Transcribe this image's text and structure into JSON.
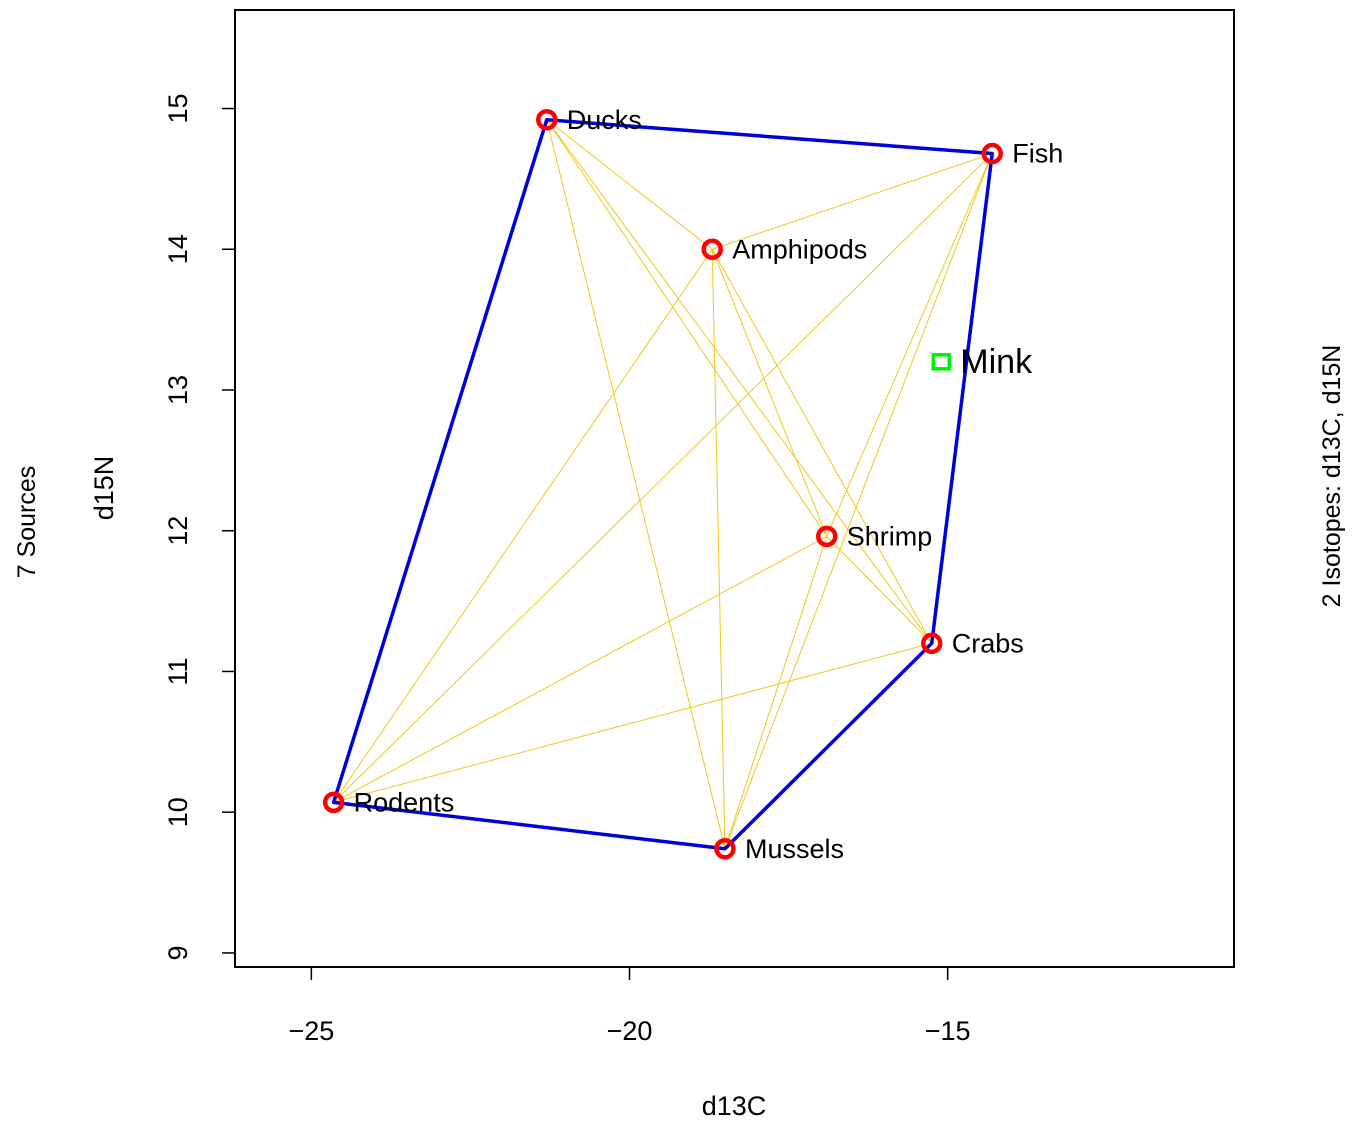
{
  "chart_data": {
    "type": "scatter",
    "xlabel": "d13C",
    "ylabel": "d15N",
    "left_label": "7  Sources",
    "right_label": "2 Isotopes:  d13C, d15N",
    "xlim": [
      -26.2,
      -10.5
    ],
    "ylim": [
      8.9,
      15.7
    ],
    "xticks": [
      -25,
      -20,
      -15
    ],
    "xtick_labels": [
      "−25",
      "−20",
      "−15"
    ],
    "yticks": [
      9,
      10,
      11,
      12,
      13,
      14,
      15
    ],
    "ytick_labels": [
      "9",
      "10",
      "11",
      "12",
      "13",
      "14",
      "15"
    ],
    "grid": false,
    "legend": "none",
    "colors": {
      "source_point": "#ff0000",
      "hull": "#0000dd",
      "mixing_lines": "#f0c81e",
      "mixture": "#00ee00"
    },
    "sources": [
      {
        "name": "Ducks",
        "x": -21.3,
        "y": 14.92
      },
      {
        "name": "Fish",
        "x": -14.3,
        "y": 14.68
      },
      {
        "name": "Amphipods",
        "x": -18.7,
        "y": 14.0
      },
      {
        "name": "Shrimp",
        "x": -16.9,
        "y": 11.96
      },
      {
        "name": "Crabs",
        "x": -15.25,
        "y": 11.2
      },
      {
        "name": "Rodents",
        "x": -24.65,
        "y": 10.07
      },
      {
        "name": "Mussels",
        "x": -18.5,
        "y": 9.74
      }
    ],
    "hull": [
      "Rodents",
      "Ducks",
      "Fish",
      "Crabs",
      "Mussels"
    ],
    "mixture": {
      "name": "Mink",
      "x": -15.1,
      "y": 13.2
    }
  }
}
